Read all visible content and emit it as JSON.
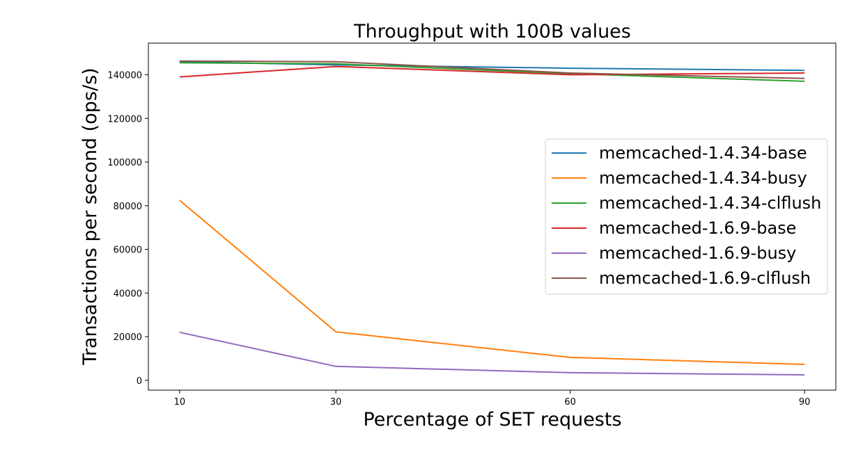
{
  "chart_data": {
    "type": "line",
    "title": "Throughput with 100B values",
    "xlabel": "Percentage of SET requests",
    "ylabel": "Transactions per second (ops/s)",
    "x": [
      10,
      30,
      60,
      90
    ],
    "xticks": [
      "10",
      "30",
      "60",
      "90"
    ],
    "xlim": [
      6,
      94
    ],
    "ylim": [
      -4500,
      154500
    ],
    "yticks": [
      0,
      20000,
      40000,
      60000,
      80000,
      100000,
      120000,
      140000
    ],
    "ytick_labels": [
      "0",
      "20000",
      "40000",
      "60000",
      "80000",
      "100000",
      "120000",
      "140000"
    ],
    "grid": false,
    "legend_position": "center-right",
    "series": [
      {
        "name": "memcached-1.4.34-base",
        "color": "#1f77b4",
        "values": [
          146000,
          144500,
          143000,
          142000
        ]
      },
      {
        "name": "memcached-1.4.34-busy",
        "color": "#ff7f0e",
        "values": [
          82500,
          22200,
          10500,
          7300
        ]
      },
      {
        "name": "memcached-1.4.34-clflush",
        "color": "#2ca02c",
        "values": [
          145500,
          145000,
          140500,
          137000
        ]
      },
      {
        "name": "memcached-1.6.9-base",
        "color": "#d62728",
        "values": [
          139000,
          143800,
          140000,
          140800
        ]
      },
      {
        "name": "memcached-1.6.9-busy",
        "color": "#9467bd",
        "values": [
          22000,
          6400,
          3500,
          2500
        ]
      },
      {
        "name": "memcached-1.6.9-clflush",
        "color": "#8c564b",
        "values": [
          146300,
          146000,
          140800,
          138300
        ]
      }
    ]
  }
}
